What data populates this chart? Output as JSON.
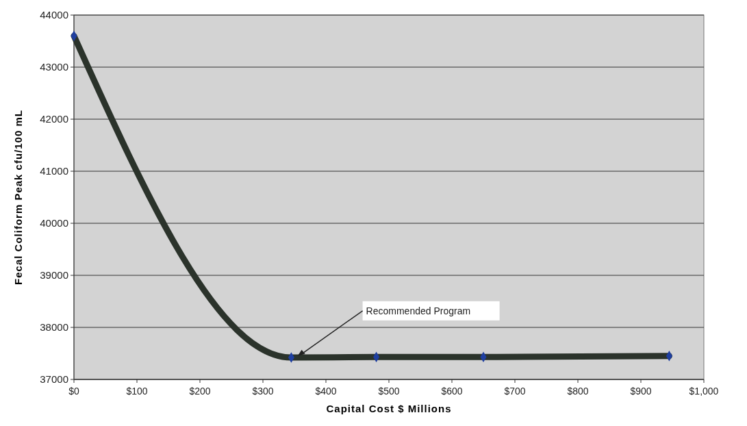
{
  "chart_data": {
    "type": "line",
    "xlabel": "Capital Cost $ Millions",
    "ylabel": "Fecal Coliform Peak cfu/100 mL",
    "x": [
      0,
      345,
      480,
      650,
      945
    ],
    "series": [
      {
        "color": "#2b332b",
        "values": [
          43600,
          37420,
          37430,
          37430,
          37450
        ]
      }
    ],
    "xlim": [
      0,
      1000
    ],
    "xticks": [
      {
        "value": 0,
        "label": "$0"
      },
      {
        "value": 100,
        "label": "$100"
      },
      {
        "value": 200,
        "label": "$200"
      },
      {
        "value": 300,
        "label": "$300"
      },
      {
        "value": 400,
        "label": "$400"
      },
      {
        "value": 500,
        "label": "$500"
      },
      {
        "value": 600,
        "label": "$600"
      },
      {
        "value": 700,
        "label": "$700"
      },
      {
        "value": 800,
        "label": "$800"
      },
      {
        "value": 900,
        "label": "$900"
      },
      {
        "value": 1000,
        "label": "$1,000"
      }
    ],
    "ylim": [
      37000,
      44000
    ],
    "yticks": [
      37000,
      38000,
      39000,
      40000,
      41000,
      42000,
      43000,
      44000
    ],
    "grid": "y",
    "marker": "diamond",
    "line_style": "solid",
    "annotations": [
      {
        "text": "Recommended Program",
        "x": 355,
        "y": 37450
      }
    ]
  }
}
